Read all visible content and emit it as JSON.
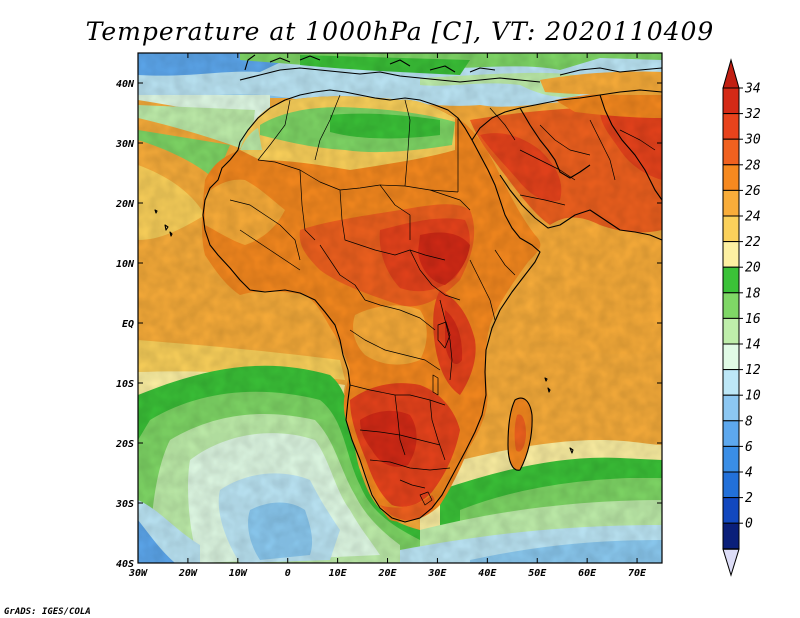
{
  "title": "Temperature at 1000hPa [C], VT: 2020110409",
  "credit": "GrADS: IGES/COLA",
  "map": {
    "x_ticks": [
      "30W",
      "20W",
      "10W",
      "0",
      "10E",
      "20E",
      "30E",
      "40E",
      "50E",
      "60E",
      "70E"
    ],
    "x_tick_values": [
      -30,
      -20,
      -10,
      0,
      10,
      20,
      30,
      40,
      50,
      60,
      70
    ],
    "y_ticks": [
      "40N",
      "30N",
      "20N",
      "10N",
      "EQ",
      "10S",
      "20S",
      "30S",
      "40S"
    ],
    "y_tick_values": [
      40,
      30,
      20,
      10,
      0,
      -10,
      -20,
      -30,
      -40
    ],
    "lon_range": [
      -30,
      75
    ],
    "lat_range": [
      -40,
      45
    ]
  },
  "colorbar": {
    "labels": [
      "34",
      "32",
      "30",
      "28",
      "26",
      "24",
      "22",
      "20",
      "18",
      "16",
      "14",
      "12",
      "10",
      "8",
      "6",
      "4",
      "2",
      "0"
    ],
    "colors": [
      "#d42a16",
      "#e8431c",
      "#f0611f",
      "#f6891f",
      "#f9ad3a",
      "#fbd15b",
      "#fdf0a2",
      "#3bc238",
      "#7fd766",
      "#bfeeab",
      "#e1fbe6",
      "#bde7f7",
      "#8cc7f2",
      "#5da8ee",
      "#3a8ee6",
      "#2270d9",
      "#1248bf",
      "#0a1f7a"
    ],
    "top_color": "#c11f12",
    "bottom_color": "#ddddf7"
  }
}
